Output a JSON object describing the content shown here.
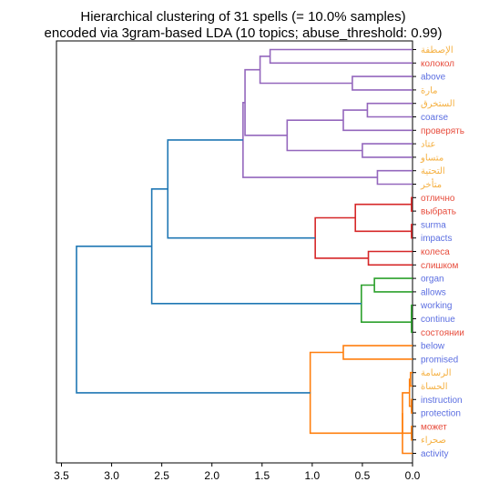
{
  "chart_data": {
    "type": "dendrogram",
    "title_lines": [
      "Hierarchical clustering of 31 spells (= 10.0% samples)",
      "encoded via 3gram-based LDA (10 topics; abuse_threshold: 0.99)"
    ],
    "orientation": "left",
    "xlim": [
      3.55,
      0.0
    ],
    "xticks": [
      "3.5",
      "3.0",
      "2.5",
      "2.0",
      "1.5",
      "1.0",
      "0.5",
      "0.0"
    ],
    "xtick_values": [
      3.5,
      3.0,
      2.5,
      2.0,
      1.5,
      1.0,
      0.5,
      0.0
    ],
    "label_colors": {
      "arabic": "#f5b041",
      "russian": "#e74c3c",
      "english": "#5b6ee1"
    },
    "link_colors": {
      "purple": "#9467bd",
      "red": "#d62728",
      "green": "#2ca02c",
      "orange": "#ff7f0e",
      "blue": "#1f77b4"
    },
    "leaves": [
      {
        "label": "الإصطفة",
        "lang": "arabic"
      },
      {
        "label": "колокол",
        "lang": "russian"
      },
      {
        "label": "above",
        "lang": "english"
      },
      {
        "label": "مارة",
        "lang": "arabic"
      },
      {
        "label": "الستخرق",
        "lang": "arabic"
      },
      {
        "label": "coarse",
        "lang": "english"
      },
      {
        "label": "проверять",
        "lang": "russian"
      },
      {
        "label": "عتاد",
        "lang": "arabic"
      },
      {
        "label": "متساو",
        "lang": "arabic"
      },
      {
        "label": "التحتية",
        "lang": "arabic"
      },
      {
        "label": "متأخر",
        "lang": "arabic"
      },
      {
        "label": "отлично",
        "lang": "russian"
      },
      {
        "label": "выбрать",
        "lang": "russian"
      },
      {
        "label": "surma",
        "lang": "english"
      },
      {
        "label": "impacts",
        "lang": "english"
      },
      {
        "label": "колеса",
        "lang": "russian"
      },
      {
        "label": "слишком",
        "lang": "russian"
      },
      {
        "label": "organ",
        "lang": "english"
      },
      {
        "label": "allows",
        "lang": "english"
      },
      {
        "label": "working",
        "lang": "english"
      },
      {
        "label": "continue",
        "lang": "english"
      },
      {
        "label": "состоянии",
        "lang": "russian"
      },
      {
        "label": "below",
        "lang": "english"
      },
      {
        "label": "promised",
        "lang": "english"
      },
      {
        "label": "الرسامة",
        "lang": "arabic"
      },
      {
        "label": "الحساة",
        "lang": "arabic"
      },
      {
        "label": "instruction",
        "lang": "english"
      },
      {
        "label": "protection",
        "lang": "english"
      },
      {
        "label": "может",
        "lang": "russian"
      },
      {
        "label": "صحراء",
        "lang": "arabic"
      },
      {
        "label": "activity",
        "lang": "english"
      }
    ],
    "links": [
      {
        "id": "c0",
        "a": 0,
        "b": 1,
        "height": 1.42,
        "color": "purple"
      },
      {
        "id": "c1",
        "a": 2,
        "b": 3,
        "height": 0.6,
        "color": "purple"
      },
      {
        "id": "c2",
        "a": "c0",
        "b": "c1",
        "height": 1.52,
        "color": "purple"
      },
      {
        "id": "c3",
        "a": 4,
        "b": 5,
        "height": 0.45,
        "color": "purple"
      },
      {
        "id": "c4",
        "a": "c3",
        "b": 6,
        "height": 0.69,
        "color": "purple"
      },
      {
        "id": "c5",
        "a": 7,
        "b": 8,
        "height": 0.5,
        "color": "purple"
      },
      {
        "id": "c6",
        "a": "c4",
        "b": "c5",
        "height": 1.25,
        "color": "purple"
      },
      {
        "id": "c7",
        "a": "c2",
        "b": "c6",
        "height": 1.67,
        "color": "purple"
      },
      {
        "id": "c8",
        "a": 9,
        "b": 10,
        "height": 0.35,
        "color": "purple"
      },
      {
        "id": "c9",
        "a": "c7",
        "b": "c8",
        "height": 1.69,
        "color": "purple"
      },
      {
        "id": "c10",
        "a": 11,
        "b": 12,
        "height": 0.01,
        "color": "red"
      },
      {
        "id": "c11",
        "a": 13,
        "b": 14,
        "height": 0.01,
        "color": "red"
      },
      {
        "id": "c12",
        "a": "c10",
        "b": "c11",
        "height": 0.57,
        "color": "red"
      },
      {
        "id": "c13",
        "a": 15,
        "b": 16,
        "height": 0.44,
        "color": "red"
      },
      {
        "id": "c14",
        "a": "c12",
        "b": "c13",
        "height": 0.97,
        "color": "red"
      },
      {
        "id": "c15",
        "a": "c9",
        "b": "c14",
        "height": 2.44,
        "color": "blue"
      },
      {
        "id": "c16",
        "a": 17,
        "b": 18,
        "height": 0.38,
        "color": "green"
      },
      {
        "id": "c17",
        "a": 19,
        "b": 20,
        "height": 0.01,
        "color": "green"
      },
      {
        "id": "c18",
        "a": "c17",
        "b": 21,
        "height": 0.01,
        "color": "green"
      },
      {
        "id": "c19",
        "a": "c16",
        "b": "c18",
        "height": 0.51,
        "color": "green"
      },
      {
        "id": "c20",
        "a": "c15",
        "b": "c19",
        "height": 2.6,
        "color": "blue"
      },
      {
        "id": "c21",
        "a": 22,
        "b": 23,
        "height": 0.69,
        "color": "orange"
      },
      {
        "id": "c22",
        "a": 24,
        "b": 25,
        "height": 0.02,
        "color": "orange"
      },
      {
        "id": "c23",
        "a": 26,
        "b": 27,
        "height": 0.01,
        "color": "orange"
      },
      {
        "id": "c24",
        "a": "c22",
        "b": "c23",
        "height": 0.03,
        "color": "orange"
      },
      {
        "id": "c25",
        "a": 28,
        "b": 29,
        "height": 0.01,
        "color": "orange"
      },
      {
        "id": "c26",
        "a": "c24",
        "b": "c25",
        "height": 0.1,
        "color": "orange"
      },
      {
        "id": "c27",
        "a": "c26",
        "b": 30,
        "height": 0.1,
        "color": "orange"
      },
      {
        "id": "c28",
        "a": "c21",
        "b": "c27",
        "height": 1.02,
        "color": "orange"
      },
      {
        "id": "c29",
        "a": "c20",
        "b": "c28",
        "height": 3.35,
        "color": "blue"
      }
    ]
  }
}
